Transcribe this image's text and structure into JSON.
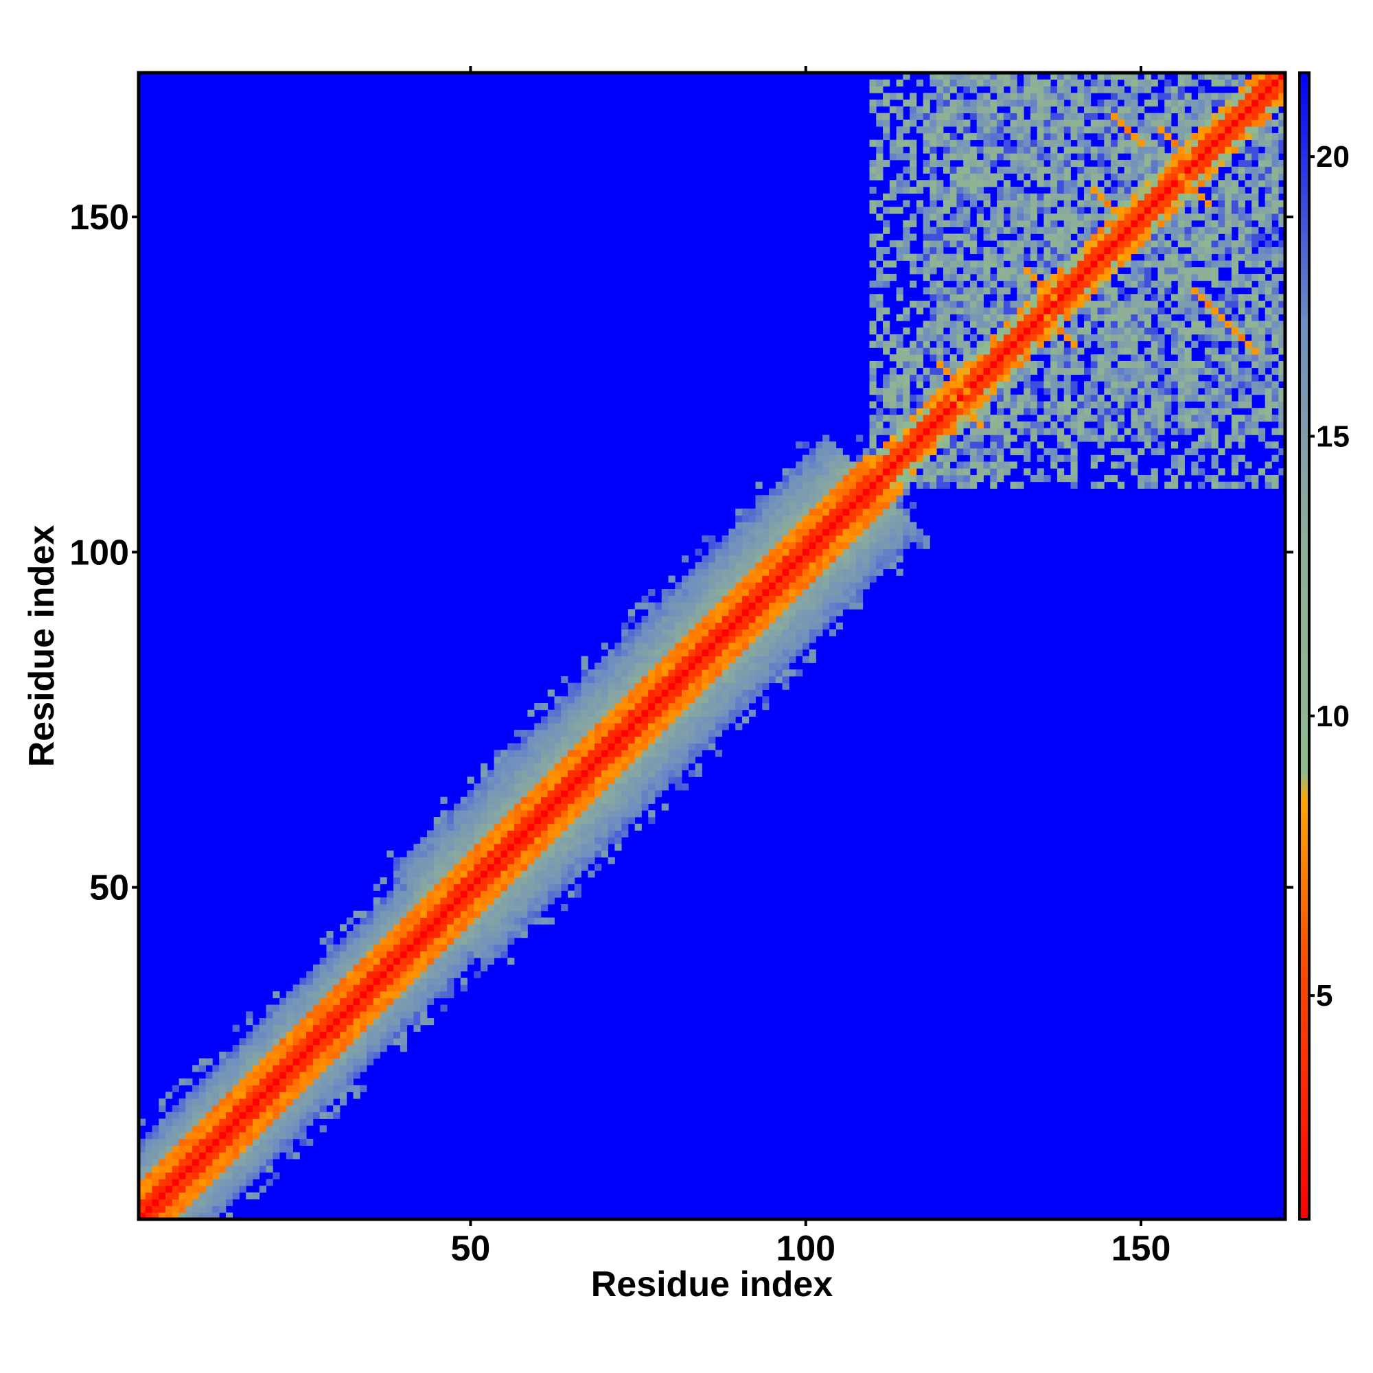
{
  "chart_data": {
    "type": "heatmap",
    "title": "",
    "xlabel": "Residue index",
    "ylabel": "Residue index",
    "n_residues": 171,
    "xlim": [
      0.5,
      171.5
    ],
    "ylim": [
      0.5,
      171.5
    ],
    "x_ticks": [
      50,
      100,
      150
    ],
    "x_tick_labels": [
      "50",
      "100",
      "150"
    ],
    "y_ticks": [
      50,
      100,
      150
    ],
    "y_tick_labels": [
      "50",
      "100",
      "150"
    ],
    "colorbar": {
      "range": [
        1,
        21.5
      ],
      "ticks": [
        5,
        10,
        15,
        20
      ],
      "tick_labels": [
        "5",
        "10",
        "15",
        "20"
      ],
      "stops": [
        {
          "value": 1,
          "color": "#ff0000"
        },
        {
          "value": 5.5,
          "color": "#ff4a00"
        },
        {
          "value": 8.5,
          "color": "#ffa500"
        },
        {
          "value": 9,
          "color": "#8fbc8f"
        },
        {
          "value": 13,
          "color": "#8fae98"
        },
        {
          "value": 17,
          "color": "#6f8fc0"
        },
        {
          "value": 21.5,
          "color": "#0000ff"
        }
      ]
    },
    "background_value": 21,
    "background_color": "#0000ff",
    "structure": {
      "diagonal_value": 1,
      "helix_band_value": 6,
      "outer_band_value": 11,
      "band_segments": [
        {
          "from": 1,
          "to": 45,
          "half_width": 11
        },
        {
          "from": 45,
          "to": 110,
          "half_width": 14
        },
        {
          "from": 110,
          "to": 171,
          "half_width": 6
        }
      ],
      "noisy_block": {
        "from": 110,
        "to": 171,
        "value": 14
      },
      "orange_contacts": [
        {
          "i": 122,
          "j": 126
        },
        {
          "i": 124,
          "j": 121
        },
        {
          "i": 135,
          "j": 140
        },
        {
          "i": 138,
          "j": 133
        },
        {
          "i": 145,
          "j": 152
        },
        {
          "i": 155,
          "j": 161
        },
        {
          "i": 158,
          "j": 154
        },
        {
          "i": 165,
          "j": 132
        },
        {
          "i": 148,
          "j": 163
        },
        {
          "i": 160,
          "j": 137
        }
      ]
    }
  }
}
